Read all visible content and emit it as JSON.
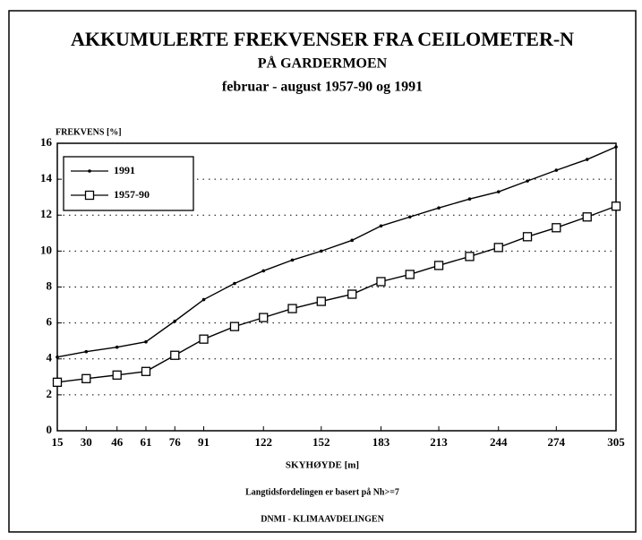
{
  "chart_data": {
    "type": "line",
    "title": "AKKUMULERTE FREKVENSER FRA CEILOMETER-N",
    "subtitle": "PÅ GARDERMOEN",
    "subtitle2": "februar - august 1957-90 og 1991",
    "ylabel": "FREKVENS [%]",
    "xlabel": "SKYHØYDE [m]",
    "note": "Langtidsfordelingen er basert på Nh>=7",
    "source": "DNMI - KLIMAAVDELINGEN",
    "x": [
      15,
      30,
      46,
      61,
      76,
      91,
      107,
      122,
      137,
      152,
      168,
      183,
      198,
      213,
      229,
      244,
      259,
      274,
      290,
      305
    ],
    "series": [
      {
        "name": "1991",
        "color": "#000000",
        "marker": "dot",
        "values": [
          4.1,
          4.4,
          4.65,
          4.95,
          6.1,
          7.3,
          8.2,
          8.9,
          9.5,
          10.0,
          10.6,
          11.4,
          11.9,
          12.4,
          12.9,
          13.3,
          13.9,
          14.5,
          15.1,
          15.8
        ]
      },
      {
        "name": "1957-90",
        "color": "#000000",
        "marker": "square",
        "values": [
          2.7,
          2.9,
          3.1,
          3.3,
          4.2,
          5.1,
          5.8,
          6.3,
          6.8,
          7.2,
          7.6,
          8.3,
          8.7,
          9.2,
          9.7,
          10.2,
          10.8,
          11.3,
          11.9,
          12.5
        ]
      }
    ],
    "xlim": [
      15,
      305
    ],
    "xticks": [
      15,
      30,
      46,
      61,
      76,
      91,
      122,
      152,
      183,
      213,
      244,
      274,
      305
    ],
    "ylim": [
      0,
      16
    ],
    "yticks": [
      0,
      2,
      4,
      6,
      8,
      10,
      12,
      14,
      16
    ],
    "grid": true,
    "legend": "upper left"
  }
}
